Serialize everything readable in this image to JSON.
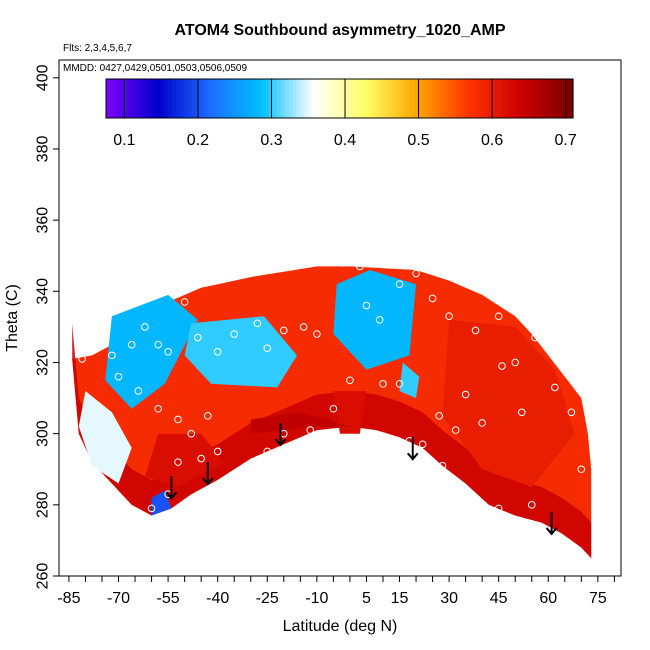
{
  "chart_data": {
    "type": "heatmap",
    "title": "ATOM4 Southbound asymmetry_1020_AMP",
    "flights_label": "Flts: 2,3,4,5,6,7",
    "dates_label": "MMDD: 0427,0429,0501,0503,0506,0509",
    "xlabel": "Latitude (deg N)",
    "ylabel": "Theta (C)",
    "xlim": [
      -88,
      82
    ],
    "ylim": [
      260,
      405
    ],
    "x_ticks": [
      "-85",
      "-70",
      "-55",
      "-40",
      "-25",
      "-10",
      "5",
      "15",
      "30",
      "45",
      "60",
      "75"
    ],
    "x_tick_values": [
      -85,
      -70,
      -55,
      -40,
      -25,
      -10,
      5,
      15,
      30,
      45,
      60,
      75
    ],
    "y_ticks": [
      "260",
      "280",
      "300",
      "320",
      "340",
      "360",
      "380",
      "400"
    ],
    "y_tick_values": [
      260,
      280,
      300,
      320,
      340,
      360,
      380,
      400
    ],
    "colorbar": {
      "range": [
        0.075,
        0.71
      ],
      "ticks": [
        "0.1",
        "0.2",
        "0.3",
        "0.4",
        "0.5",
        "0.6",
        "0.7"
      ],
      "tick_values": [
        0.1,
        0.2,
        0.3,
        0.4,
        0.5,
        0.6,
        0.7
      ],
      "colors": [
        "#7f00ff",
        "#0000cc",
        "#1e6cff",
        "#00bfff",
        "#ffffff",
        "#ffff66",
        "#ffa500",
        "#ff3300",
        "#cc0000",
        "#7a0000"
      ]
    },
    "field": {
      "upper_boundary": [
        [
          -84,
          321
        ],
        [
          -78,
          322
        ],
        [
          -72,
          325
        ],
        [
          -66,
          329
        ],
        [
          -60,
          333
        ],
        [
          -55,
          337
        ],
        [
          -50,
          339
        ],
        [
          -45,
          341
        ],
        [
          -40,
          342
        ],
        [
          -30,
          344
        ],
        [
          -20,
          345.5
        ],
        [
          -10,
          347
        ],
        [
          0,
          347
        ],
        [
          10,
          346.5
        ],
        [
          20,
          346
        ],
        [
          30,
          343
        ],
        [
          40,
          339
        ],
        [
          50,
          333
        ],
        [
          55,
          328
        ],
        [
          60,
          322
        ],
        [
          65,
          316
        ],
        [
          70,
          310
        ],
        [
          72,
          300
        ],
        [
          73,
          290
        ],
        [
          73,
          280
        ],
        [
          73,
          275
        ]
      ],
      "lower_boundary": [
        [
          -84,
          321
        ],
        [
          -82,
          300
        ],
        [
          -78,
          292
        ],
        [
          -72,
          286
        ],
        [
          -66,
          280
        ],
        [
          -60,
          277
        ],
        [
          -54,
          279
        ],
        [
          -48,
          283
        ],
        [
          -40,
          287
        ],
        [
          -30,
          293
        ],
        [
          -20,
          297
        ],
        [
          -10,
          301
        ],
        [
          0,
          302
        ],
        [
          8,
          301
        ],
        [
          15,
          299
        ],
        [
          22,
          296
        ],
        [
          28,
          291
        ],
        [
          35,
          286
        ],
        [
          42,
          280
        ],
        [
          50,
          277
        ],
        [
          58,
          275
        ],
        [
          64,
          272
        ],
        [
          70,
          268
        ],
        [
          73,
          265
        ]
      ],
      "regions": [
        {
          "value": 0.08,
          "points": [
            [
              5,
              336
            ],
            [
              10,
              341
            ],
            [
              16,
              336
            ],
            [
              15,
              327
            ],
            [
              8,
              326
            ],
            [
              3,
              330
            ]
          ]
        },
        {
          "value": 0.28,
          "points": [
            [
              -4,
              342
            ],
            [
              6,
              346
            ],
            [
              20,
              342
            ],
            [
              18,
              322
            ],
            [
              5,
              318
            ],
            [
              -5,
              328
            ]
          ]
        },
        {
          "value": 0.15,
          "points": [
            [
              -67,
              326
            ],
            [
              -62,
              324
            ],
            [
              -59,
              318
            ],
            [
              -64,
              313
            ],
            [
              -69,
              317
            ]
          ]
        },
        {
          "value": 0.28,
          "points": [
            [
              -72,
              333
            ],
            [
              -55,
              339
            ],
            [
              -46,
              332
            ],
            [
              -56,
              314
            ],
            [
              -66,
              307
            ],
            [
              -74,
              315
            ]
          ]
        },
        {
          "value": 0.35,
          "points": [
            [
              -80,
              312
            ],
            [
              -72,
              306
            ],
            [
              -66,
              296
            ],
            [
              -70,
              286
            ],
            [
              -78,
              291
            ],
            [
              -82,
              302
            ]
          ]
        },
        {
          "value": 0.16,
          "points": [
            [
              -40,
              325
            ],
            [
              -32,
              327
            ],
            [
              -24,
              322
            ],
            [
              -28,
              318
            ],
            [
              -38,
              318
            ]
          ]
        },
        {
          "value": 0.3,
          "points": [
            [
              -48,
              331
            ],
            [
              -26,
              333
            ],
            [
              -16,
              322
            ],
            [
              -22,
              313
            ],
            [
              -42,
              314
            ],
            [
              -50,
              322
            ]
          ]
        },
        {
          "value": 0.2,
          "points": [
            [
              -60,
              282
            ],
            [
              -56,
              284
            ],
            [
              -54,
              279
            ],
            [
              -60,
              277
            ]
          ]
        },
        {
          "value": 0.3,
          "points": [
            [
              16,
              320
            ],
            [
              21,
              316
            ],
            [
              20,
              310
            ],
            [
              15,
              312
            ]
          ]
        },
        {
          "value": 0.62,
          "points": [
            [
              -5,
              312
            ],
            [
              5,
              312
            ],
            [
              3,
              300
            ],
            [
              -3,
              300
            ]
          ]
        },
        {
          "value": 0.62,
          "points": [
            [
              -58,
              300
            ],
            [
              -45,
              300
            ],
            [
              -38,
              292
            ],
            [
              -52,
              285
            ],
            [
              -62,
              288
            ]
          ]
        },
        {
          "value": 0.6,
          "points": [
            [
              30,
              332
            ],
            [
              50,
              330
            ],
            [
              62,
              318
            ],
            [
              68,
              300
            ],
            [
              55,
              285
            ],
            [
              40,
              290
            ],
            [
              28,
              305
            ]
          ]
        },
        {
          "value": 0.65,
          "points": [
            [
              -30,
              300
            ],
            [
              -10,
              302
            ],
            [
              0,
              302
            ],
            [
              -15,
              306
            ],
            [
              -30,
              304
            ]
          ]
        }
      ],
      "points": [
        [
          -81,
          321
        ],
        [
          -72,
          322
        ],
        [
          -66,
          325
        ],
        [
          -62,
          330
        ],
        [
          -58,
          325
        ],
        [
          -55,
          323
        ],
        [
          -50,
          337
        ],
        [
          -46,
          327
        ],
        [
          -40,
          323
        ],
        [
          -35,
          328
        ],
        [
          -28,
          331
        ],
        [
          -25,
          324
        ],
        [
          -20,
          329
        ],
        [
          -14,
          330
        ],
        [
          -10,
          328
        ],
        [
          -2,
          348
        ],
        [
          3,
          347
        ],
        [
          5,
          336
        ],
        [
          9,
          332
        ],
        [
          15,
          342
        ],
        [
          20,
          345
        ],
        [
          25,
          338
        ],
        [
          30,
          333
        ],
        [
          38,
          329
        ],
        [
          45,
          333
        ],
        [
          50,
          320
        ],
        [
          56,
          327
        ],
        [
          62,
          313
        ],
        [
          67,
          306
        ],
        [
          70,
          290
        ],
        [
          -70,
          316
        ],
        [
          -64,
          312
        ],
        [
          -58,
          307
        ],
        [
          -52,
          304
        ],
        [
          -48,
          300
        ],
        [
          -43,
          305
        ],
        [
          -40,
          295
        ],
        [
          -37,
          287
        ],
        [
          -30,
          290
        ],
        [
          -25,
          295
        ],
        [
          -20,
          300
        ],
        [
          -12,
          301
        ],
        [
          -5,
          307
        ],
        [
          0,
          315
        ],
        [
          5,
          300
        ],
        [
          10,
          314
        ],
        [
          15,
          314
        ],
        [
          18,
          298
        ],
        [
          22,
          297
        ],
        [
          27,
          305
        ],
        [
          32,
          301
        ],
        [
          35,
          311
        ],
        [
          40,
          303
        ],
        [
          46,
          319
        ],
        [
          52,
          306
        ],
        [
          55,
          280
        ],
        [
          45,
          279
        ],
        [
          28,
          291
        ],
        [
          -60,
          279
        ],
        [
          -55,
          283
        ],
        [
          -52,
          292
        ],
        [
          -45,
          293
        ]
      ],
      "arrows": [
        [
          -54,
          288
        ],
        [
          -43,
          292
        ],
        [
          -21,
          303
        ],
        [
          19,
          299
        ],
        [
          61,
          278
        ]
      ]
    }
  }
}
